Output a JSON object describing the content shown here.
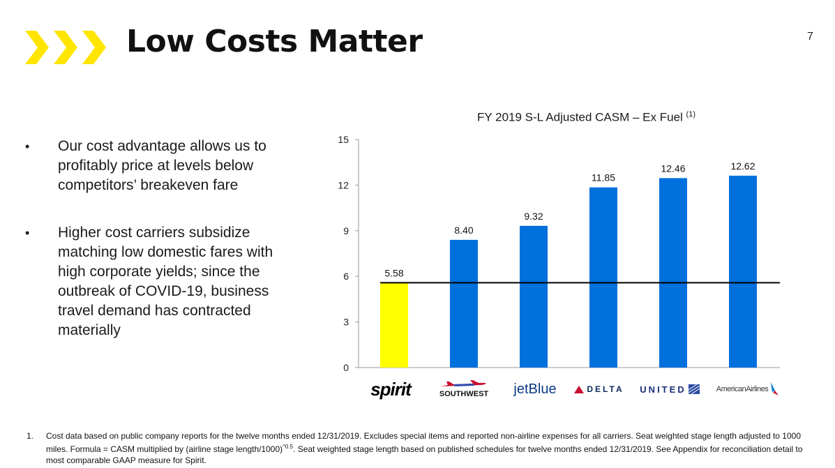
{
  "header": {
    "title": "Low Costs Matter",
    "page_number": "7",
    "chevron_color": "#FFE500"
  },
  "bullets": [
    "Our cost advantage allows us to profitably price at levels below competitors’ breakeven fare",
    "Higher cost carriers subsidize matching low domestic fares with high corporate yields; since the outbreak of COVID-19, business travel demand has contracted materially"
  ],
  "bullet_symbol": "•",
  "chart_data": {
    "type": "bar",
    "title": "FY 2019 S-L Adjusted CASM – Ex Fuel",
    "title_footnote": "(1)",
    "categories": [
      "Spirit",
      "Southwest",
      "JetBlue",
      "Delta",
      "United",
      "American Airlines"
    ],
    "values": [
      5.58,
      8.4,
      9.32,
      11.85,
      12.46,
      12.62
    ],
    "data_labels": [
      "5.58",
      "8.40",
      "9.32",
      "11.85",
      "12.46",
      "12.62"
    ],
    "bar_colors": [
      "#FFFF00",
      "#0070DD",
      "#0070DD",
      "#0070DD",
      "#0070DD",
      "#0070DD"
    ],
    "reference_line": {
      "value": 5.58,
      "color": "#000000"
    },
    "ylim": [
      0,
      15
    ],
    "yticks": [
      0,
      3,
      6,
      9,
      12,
      15
    ],
    "xlabel": "",
    "ylabel": "",
    "grid": false,
    "legend": "none"
  },
  "logos": {
    "spirit": "spirit",
    "southwest": "SOUTHWEST",
    "jetblue": "jetBlue",
    "delta": "DELTA",
    "united": "UNITED",
    "american": "AmericanAirlines"
  },
  "footnote": {
    "number": "1.",
    "text_part1": "Cost data based on public company reports for the twelve months ended 12/31/2019.  Excludes special items and reported non-airline expenses for all carriers. Seat weighted stage length adjusted to 1000 miles.  Formula = CASM multiplied by (airline stage length/1000)",
    "superscript": "^0.5",
    "text_part2": ".  Seat weighted stage length based on published schedules for twelve months ended 12/31/2019. See Appendix for reconciliation detail to most comparable GAAP measure for Spirit."
  }
}
